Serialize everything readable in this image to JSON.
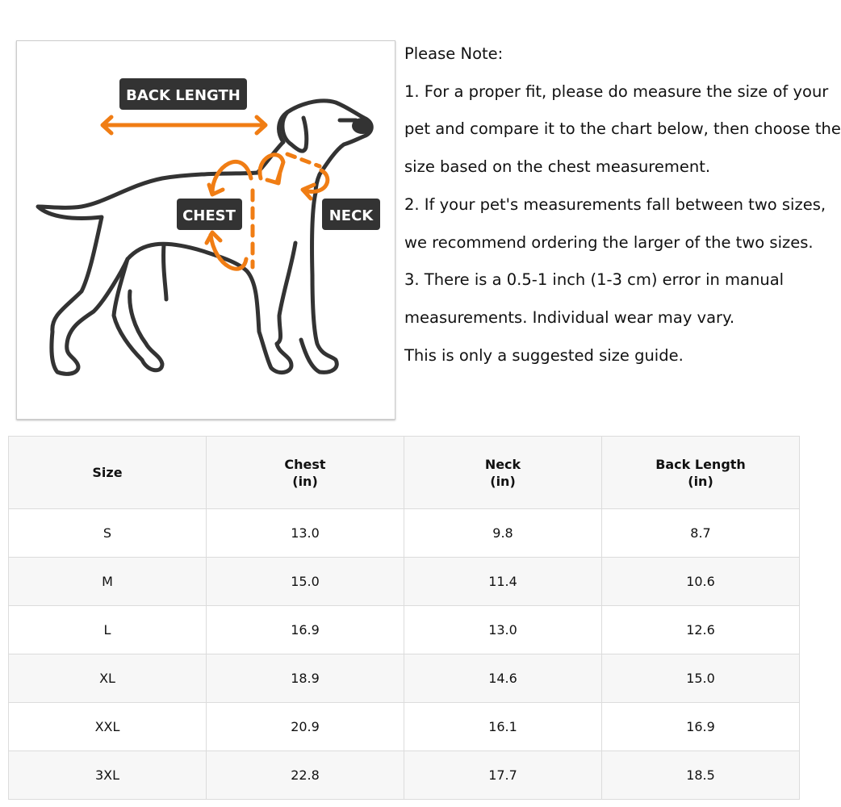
{
  "diagram": {
    "labels": {
      "back_length": "BACK LENGTH",
      "chest": "CHEST",
      "neck": "NECK"
    },
    "colors": {
      "accent": "#f07d14",
      "outline": "#333333",
      "label_bg": "#333333"
    }
  },
  "notes": {
    "heading": "Please Note:",
    "lines": [
      "1. For a proper fit, please do measure the size of your",
      "pet and compare it to the chart below, then choose the",
      "size based on the chest measurement.",
      "2. If your pet's measurements fall between two sizes,",
      "we recommend ordering the larger of the two sizes.",
      "3. There is a 0.5-1 inch (1-3 cm) error in manual",
      "measurements. Individual wear may vary.",
      "This is only a suggested size guide."
    ]
  },
  "table": {
    "headers": [
      {
        "title": "Size",
        "unit": ""
      },
      {
        "title": "Chest",
        "unit": "(in)"
      },
      {
        "title": "Neck",
        "unit": "(in)"
      },
      {
        "title": "Back Length",
        "unit": "(in)"
      }
    ],
    "rows": [
      [
        "S",
        "13.0",
        "9.8",
        "8.7"
      ],
      [
        "M",
        "15.0",
        "11.4",
        "10.6"
      ],
      [
        "L",
        "16.9",
        "13.0",
        "12.6"
      ],
      [
        "XL",
        "18.9",
        "14.6",
        "15.0"
      ],
      [
        "XXL",
        "20.9",
        "16.1",
        "16.9"
      ],
      [
        "3XL",
        "22.8",
        "17.7",
        "18.5"
      ]
    ]
  }
}
